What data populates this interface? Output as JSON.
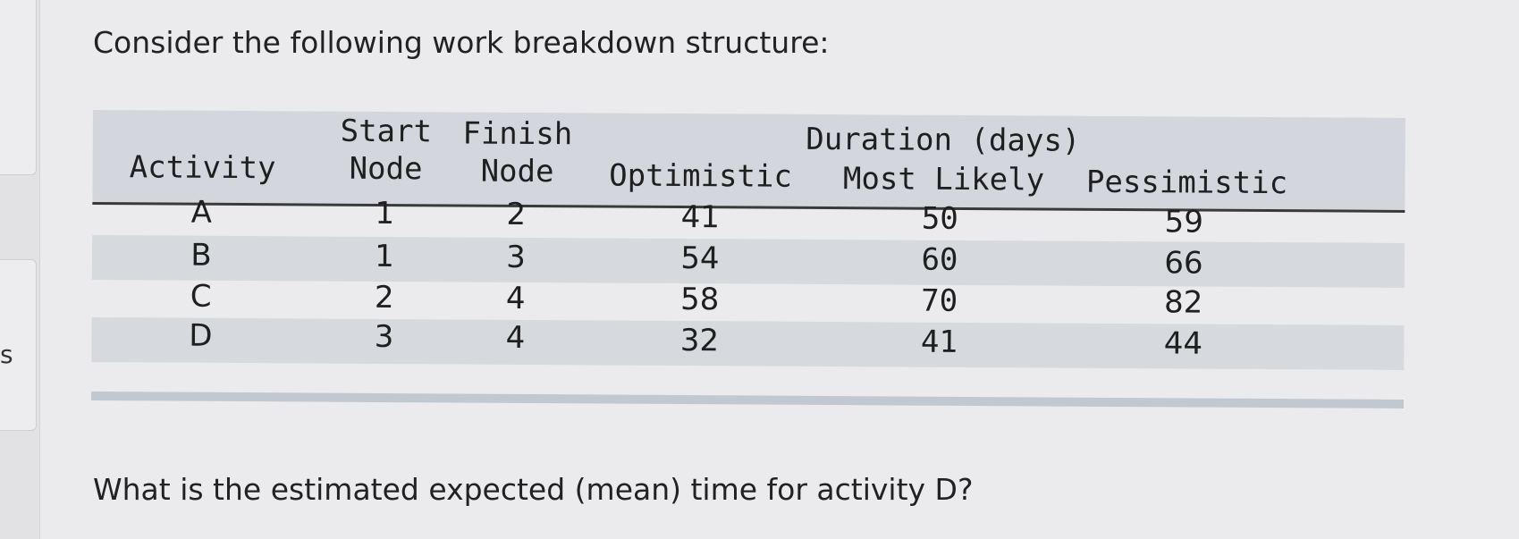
{
  "side_panel": {
    "letter": "s"
  },
  "prompt": "Consider the following work breakdown structure:",
  "table": {
    "group_header": "Duration (days)",
    "columns": [
      {
        "top": "",
        "bottom": "Activity"
      },
      {
        "top": "Start",
        "bottom": "Node"
      },
      {
        "top": "Finish",
        "bottom": "Node"
      },
      {
        "top": "",
        "bottom": "Optimistic"
      },
      {
        "top": "",
        "bottom": "Most Likely"
      },
      {
        "top": "",
        "bottom": "Pessimistic"
      }
    ],
    "rows": [
      [
        "A",
        "1",
        "2",
        "41",
        "50",
        "59"
      ],
      [
        "B",
        "1",
        "3",
        "54",
        "60",
        "66"
      ],
      [
        "C",
        "2",
        "4",
        "58",
        "70",
        "82"
      ],
      [
        "D",
        "3",
        "4",
        "32",
        "41",
        "44"
      ]
    ]
  },
  "question": "What is the estimated expected (mean) time for activity D?"
}
